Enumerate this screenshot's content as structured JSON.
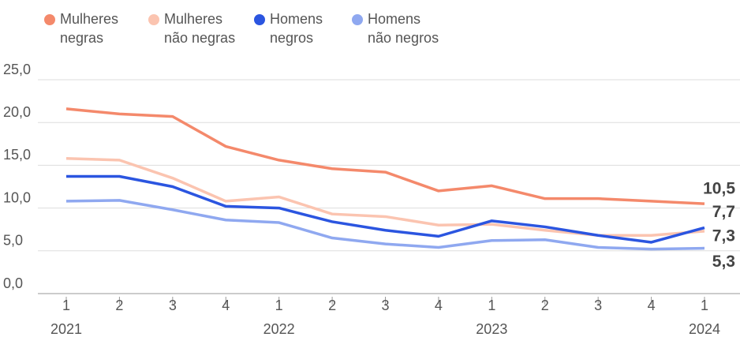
{
  "chart_data": {
    "type": "line",
    "categories": [
      "1",
      "2",
      "3",
      "4",
      "1",
      "2",
      "3",
      "4",
      "1",
      "2",
      "3",
      "4",
      "1"
    ],
    "year_labels": [
      "2021",
      null,
      null,
      null,
      "2022",
      null,
      null,
      null,
      "2023",
      null,
      null,
      null,
      "2024"
    ],
    "ylim": [
      0,
      25
    ],
    "yticks": [
      {
        "value": 0,
        "label": "0,0"
      },
      {
        "value": 5,
        "label": "5,0"
      },
      {
        "value": 10,
        "label": "10,0"
      },
      {
        "value": 15,
        "label": "15,0"
      },
      {
        "value": 20,
        "label": "20,0"
      },
      {
        "value": 25,
        "label": "25,0"
      }
    ],
    "grid": true,
    "series": [
      {
        "name": "Mulheres negras",
        "color": "#f4896b",
        "values": [
          21.6,
          21.0,
          20.7,
          17.2,
          15.6,
          14.6,
          14.2,
          12.0,
          12.6,
          11.1,
          11.1,
          10.8,
          10.5
        ],
        "value_labels": [
          null,
          null,
          null,
          null,
          null,
          null,
          null,
          null,
          null,
          null,
          null,
          null,
          "10,5"
        ]
      },
      {
        "name": "Mulheres não negras",
        "color": "#fbc4b0",
        "values": [
          15.8,
          15.6,
          13.5,
          10.8,
          11.3,
          9.3,
          9.0,
          8.0,
          8.1,
          7.4,
          6.8,
          6.8,
          7.3
        ],
        "value_labels": [
          null,
          null,
          null,
          null,
          null,
          null,
          null,
          null,
          null,
          null,
          null,
          null,
          "7,3"
        ]
      },
      {
        "name": "Homens negros",
        "color": "#2b55e0",
        "values": [
          13.7,
          13.7,
          12.5,
          10.2,
          10.0,
          8.4,
          7.4,
          6.7,
          8.5,
          7.8,
          6.8,
          6.0,
          7.7
        ],
        "value_labels": [
          null,
          null,
          null,
          null,
          null,
          null,
          null,
          null,
          null,
          null,
          null,
          null,
          "7,7"
        ]
      },
      {
        "name": "Homens não negros",
        "color": "#8fa8f0",
        "values": [
          10.8,
          10.9,
          9.8,
          8.6,
          8.3,
          6.5,
          5.8,
          5.4,
          6.2,
          6.3,
          5.4,
          5.2,
          5.3
        ],
        "value_labels": [
          null,
          null,
          null,
          null,
          null,
          null,
          null,
          null,
          null,
          null,
          null,
          null,
          "5,3"
        ]
      }
    ]
  }
}
